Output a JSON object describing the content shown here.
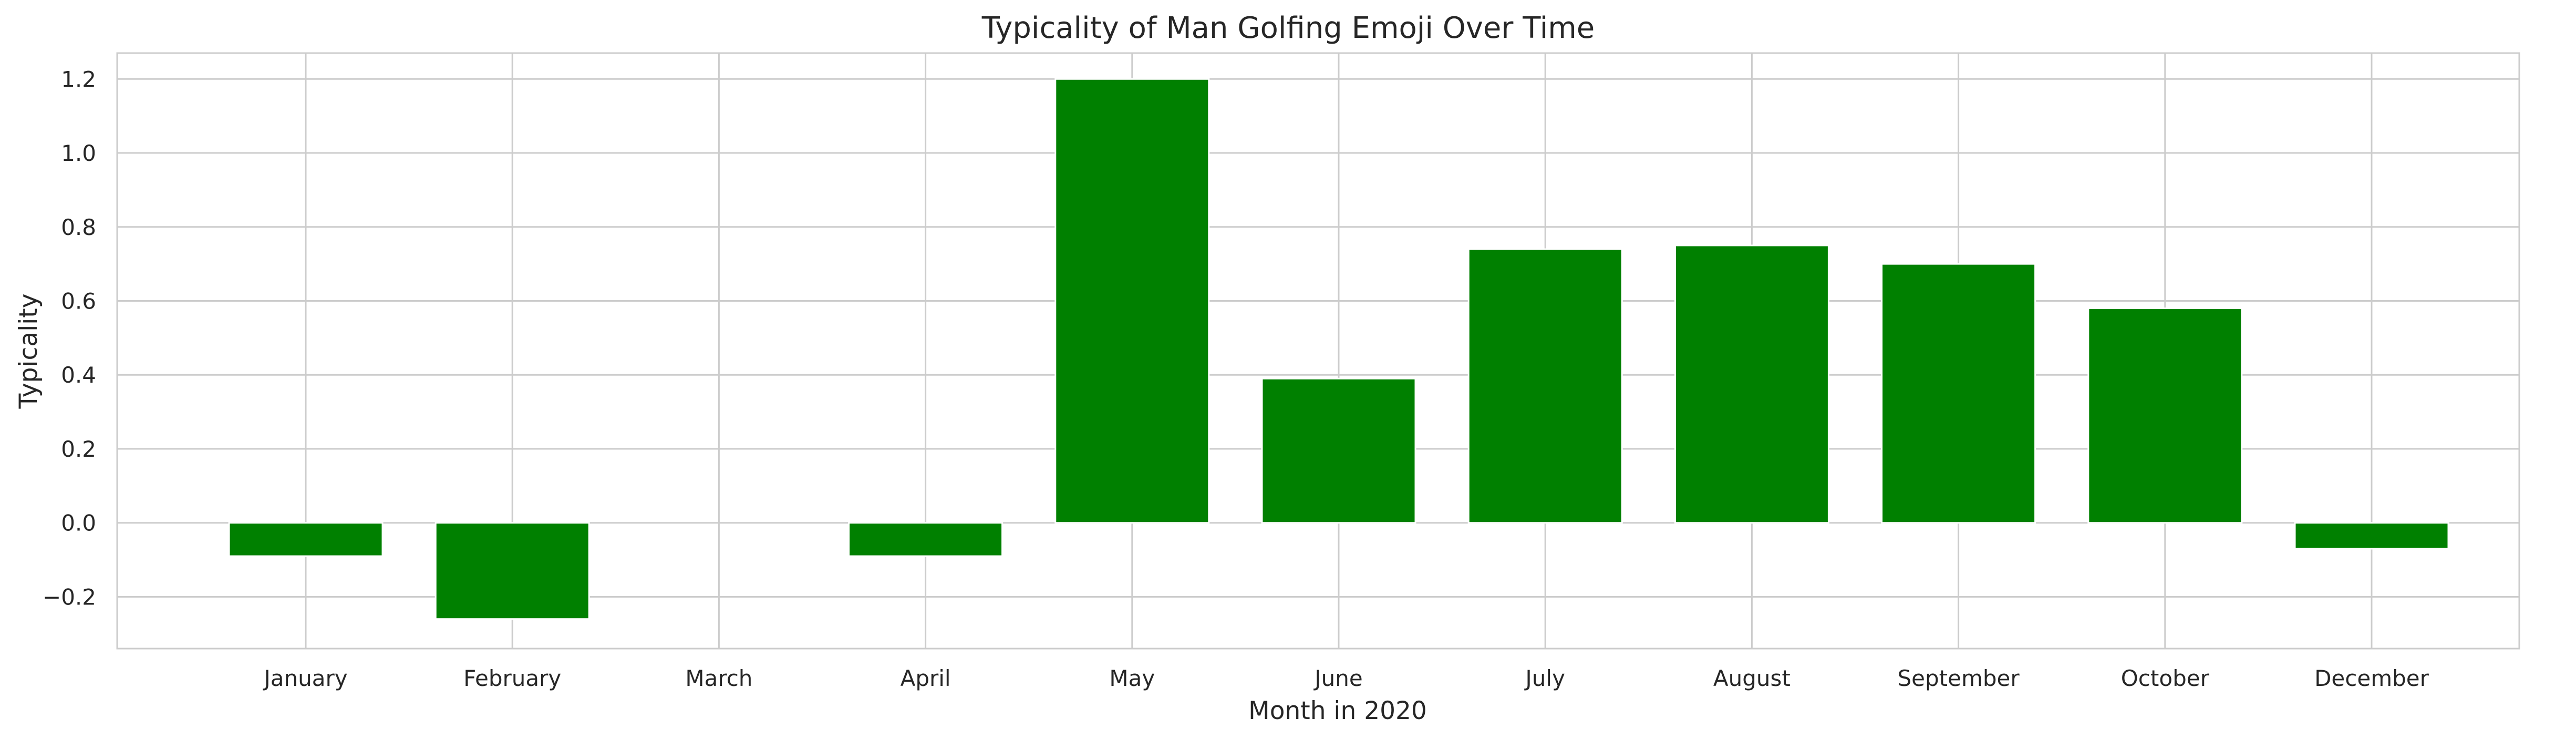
{
  "chart_data": {
    "type": "bar",
    "title": "Typicality of Man Golfing Emoji Over Time",
    "xlabel": "Month in 2020",
    "ylabel": "Typicality",
    "categories": [
      "January",
      "February",
      "March",
      "April",
      "May",
      "June",
      "July",
      "August",
      "September",
      "October",
      "December"
    ],
    "values": [
      -0.09,
      -0.26,
      0.0,
      -0.09,
      1.2,
      0.39,
      0.74,
      0.75,
      0.7,
      0.58,
      -0.07
    ],
    "ylim": [
      -0.34,
      1.27
    ],
    "yticks": [
      -0.2,
      0.0,
      0.2,
      0.4,
      0.6,
      0.8,
      1.0,
      1.2
    ],
    "ytick_labels": [
      "−0.2",
      "0.0",
      "0.2",
      "0.4",
      "0.6",
      "0.8",
      "1.0",
      "1.2"
    ],
    "grid": true,
    "bar_color": "#008000",
    "grid_color": "#cccccc",
    "spine_color": "#cccccc",
    "text_color": "#262626"
  }
}
